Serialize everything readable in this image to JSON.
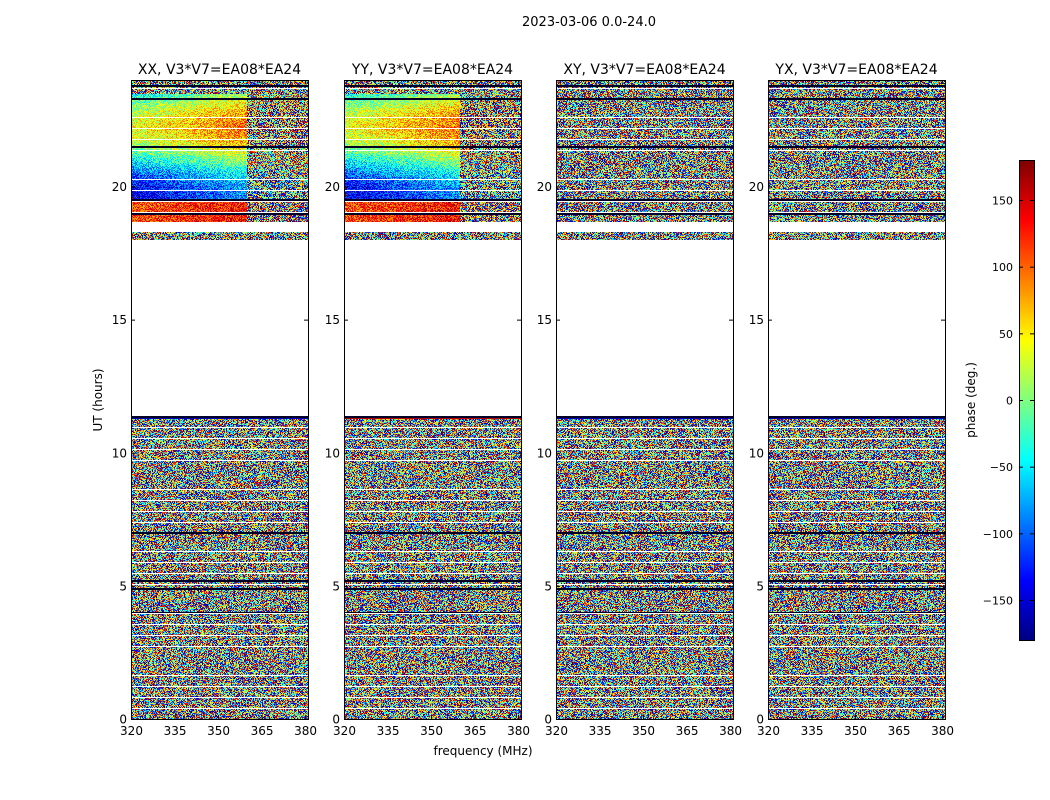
{
  "figure": {
    "suptitle": "2023-03-06 0.0-24.0",
    "xlabel": "frequency (MHz)",
    "ylabel": "UT (hours)"
  },
  "chart_data": {
    "type": "heatmap",
    "panels": [
      {
        "title": "XX, V3*V7=EA08*EA24",
        "pol": "XX"
      },
      {
        "title": "YY, V3*V7=EA08*EA24",
        "pol": "YY"
      },
      {
        "title": "XY, V3*V7=EA08*EA24",
        "pol": "XY"
      },
      {
        "title": "YX, V3*V7=EA08*EA24",
        "pol": "YX"
      }
    ],
    "x": {
      "min": 320,
      "max": 381,
      "ticks": [
        320,
        335,
        350,
        365,
        380
      ],
      "tick_labels": [
        "320",
        "335",
        "350",
        "365",
        "380"
      ]
    },
    "y": {
      "min": 0,
      "max": 24,
      "ticks": [
        0,
        5,
        10,
        15,
        20
      ],
      "tick_labels": [
        "0",
        "5",
        "10",
        "15",
        "20"
      ]
    },
    "colorbar": {
      "label": "phase (deg.)",
      "min": -180,
      "max": 180,
      "ticks": [
        -150,
        -100,
        -50,
        0,
        50,
        100,
        150
      ],
      "tick_labels": [
        "−150",
        "−100",
        "−50",
        "0",
        "50",
        "100",
        "150"
      ],
      "colormap": "jet"
    },
    "flagged_ut_range": [
      11.4,
      17.7
    ],
    "colors": {
      "axes": "#000000",
      "background": "#ffffff"
    }
  }
}
